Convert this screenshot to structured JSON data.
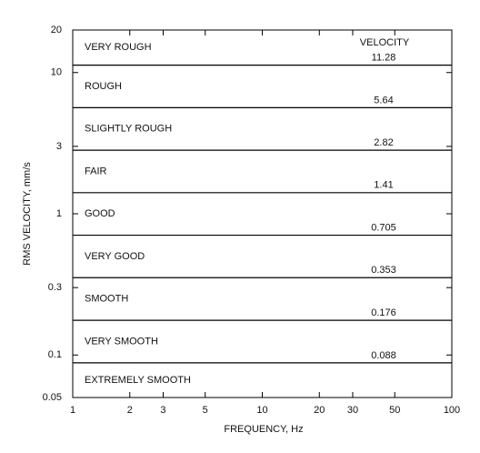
{
  "chart_data": {
    "type": "band",
    "xlabel": "FREQUENCY, Hz",
    "ylabel": "RMS VELOCITY, mm/s",
    "annotation": "VELOCITY",
    "xscale": "log",
    "yscale": "log",
    "xlim": [
      1,
      100
    ],
    "xticks": [
      1,
      2,
      3,
      5,
      10,
      20,
      30,
      50,
      100
    ],
    "ylim": [
      0.05,
      20
    ],
    "yticks": [
      0.05,
      0.1,
      0.3,
      1,
      3,
      10,
      20
    ],
    "zones": [
      "VERY ROUGH",
      "ROUGH",
      "SLIGHTLY ROUGH",
      "FAIR",
      "GOOD",
      "VERY GOOD",
      "SMOOTH",
      "VERY SMOOTH",
      "EXTREMELY SMOOTH"
    ],
    "boundaries": [
      11.28,
      5.64,
      2.82,
      1.41,
      0.705,
      0.353,
      0.176,
      0.088
    ],
    "color": "#000000"
  }
}
